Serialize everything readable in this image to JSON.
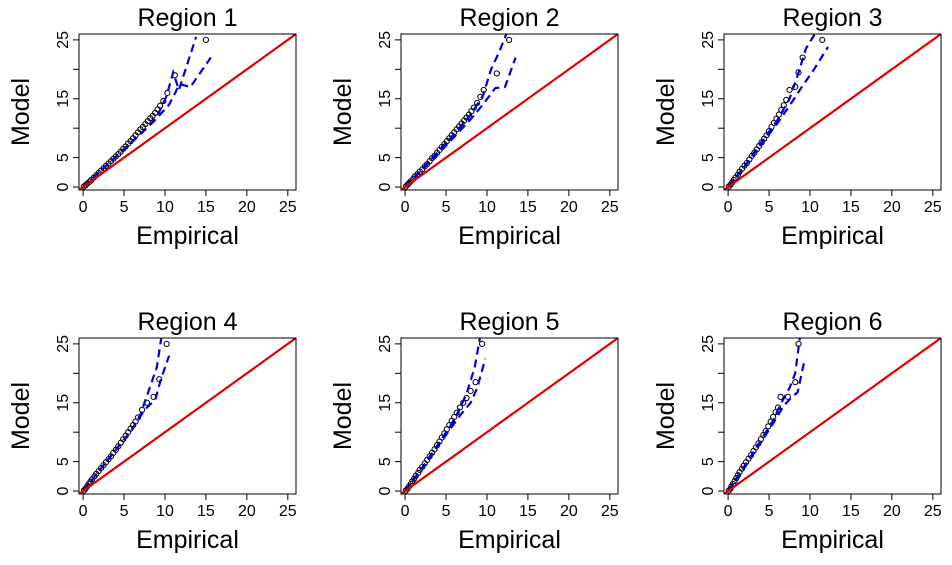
{
  "chart_data": [
    {
      "type": "scatter",
      "title": "Region  1",
      "xlabel": "Empirical",
      "ylabel": "Model",
      "xlim": [
        -0.5,
        26
      ],
      "ylim": [
        -0.5,
        26
      ],
      "xticks": [
        0,
        5,
        10,
        15,
        20,
        25
      ],
      "yticks": [
        0,
        5,
        15,
        25
      ],
      "series": [
        {
          "type": "scatter",
          "color": "#000000",
          "x": [
            0.1,
            0.3,
            0.5,
            0.8,
            1.0,
            1.3,
            1.6,
            1.9,
            2.2,
            2.5,
            2.8,
            3.1,
            3.4,
            3.7,
            4.0,
            4.3,
            4.6,
            4.9,
            5.2,
            5.5,
            5.8,
            6.1,
            6.4,
            6.7,
            7.0,
            7.3,
            7.6,
            7.9,
            8.2,
            8.5,
            8.8,
            9.1,
            9.4,
            9.8,
            10.3,
            11.2,
            15.0
          ],
          "y": [
            0.1,
            0.3,
            0.6,
            0.9,
            1.2,
            1.6,
            2.0,
            2.4,
            2.8,
            3.2,
            3.6,
            4.0,
            4.4,
            4.8,
            5.2,
            5.6,
            6.0,
            6.5,
            6.9,
            7.4,
            7.8,
            8.3,
            8.8,
            9.3,
            9.8,
            10.2,
            10.7,
            11.2,
            11.7,
            12.1,
            12.6,
            13.2,
            13.8,
            14.6,
            16.0,
            19.0,
            25.0
          ]
        },
        {
          "type": "dashed-line",
          "color": "#0000dd",
          "x": [
            0,
            2,
            4,
            6,
            8,
            9,
            10.2,
            11.0,
            11.7,
            13.8
          ],
          "y": [
            0,
            2.6,
            5.1,
            7.7,
            10.3,
            11.9,
            15.5,
            19.5,
            16.5,
            25.5
          ]
        },
        {
          "type": "dashed-line",
          "color": "#0000dd",
          "x": [
            0,
            2,
            4,
            6,
            8,
            9,
            10.5,
            11.8,
            13.1,
            15.6
          ],
          "y": [
            0,
            2.6,
            5.1,
            7.7,
            10.3,
            11.7,
            14.0,
            17.5,
            17.0,
            22.0
          ]
        },
        {
          "type": "line",
          "color": "#e00000",
          "x": [
            -0.5,
            26
          ],
          "y": [
            -0.5,
            26
          ]
        }
      ]
    },
    {
      "type": "scatter",
      "title": "Region  2",
      "xlabel": "Empirical",
      "ylabel": "Model",
      "xlim": [
        -0.5,
        26
      ],
      "ylim": [
        -0.5,
        26
      ],
      "xticks": [
        0,
        5,
        10,
        15,
        20,
        25
      ],
      "yticks": [
        0,
        5,
        15,
        25
      ],
      "series": [
        {
          "type": "scatter",
          "color": "#000000",
          "x": [
            0.1,
            0.3,
            0.5,
            0.7,
            1.0,
            1.2,
            1.5,
            1.8,
            2.1,
            2.4,
            2.7,
            3.0,
            3.3,
            3.6,
            3.9,
            4.2,
            4.5,
            4.8,
            5.1,
            5.4,
            5.7,
            6.0,
            6.3,
            6.6,
            6.9,
            7.2,
            7.5,
            7.8,
            8.1,
            8.4,
            8.8,
            9.2,
            9.6,
            11.2,
            12.7
          ],
          "y": [
            0.1,
            0.4,
            0.7,
            1.0,
            1.4,
            1.8,
            2.2,
            2.6,
            3.0,
            3.5,
            3.9,
            4.4,
            4.9,
            5.3,
            5.8,
            6.3,
            6.8,
            7.3,
            7.8,
            8.3,
            8.8,
            9.3,
            9.8,
            10.3,
            10.8,
            11.3,
            11.8,
            12.3,
            12.9,
            13.5,
            14.3,
            15.3,
            16.5,
            19.3,
            25.0
          ]
        },
        {
          "type": "dashed-line",
          "color": "#0000dd",
          "x": [
            0,
            2,
            4,
            6,
            8,
            9.5,
            10.5,
            11.5,
            12.5
          ],
          "y": [
            0,
            3.0,
            6.0,
            9.0,
            12.3,
            15.5,
            20.0,
            23.0,
            26.5
          ]
        },
        {
          "type": "dashed-line",
          "color": "#0000dd",
          "x": [
            0,
            2,
            4,
            6,
            8,
            9.5,
            11.0,
            12.2,
            13.5
          ],
          "y": [
            0,
            2.8,
            5.6,
            8.5,
            11.5,
            14.0,
            16.8,
            17.0,
            22.0
          ]
        },
        {
          "type": "line",
          "color": "#e00000",
          "x": [
            -0.5,
            26
          ],
          "y": [
            -0.5,
            26
          ]
        }
      ]
    },
    {
      "type": "scatter",
      "title": "Region  3",
      "xlabel": "Empirical",
      "ylabel": "Model",
      "xlim": [
        -0.5,
        26
      ],
      "ylim": [
        -0.5,
        26
      ],
      "xticks": [
        0,
        5,
        10,
        15,
        20,
        25
      ],
      "yticks": [
        0,
        5,
        15,
        25
      ],
      "series": [
        {
          "type": "scatter",
          "color": "#000000",
          "x": [
            0.1,
            0.3,
            0.5,
            0.7,
            0.9,
            1.2,
            1.4,
            1.7,
            2.0,
            2.3,
            2.6,
            2.9,
            3.2,
            3.5,
            3.8,
            4.1,
            4.4,
            4.7,
            5.0,
            5.3,
            5.6,
            5.9,
            6.2,
            6.5,
            6.8,
            7.1,
            7.5,
            8.2,
            8.6,
            9.1,
            11.5
          ],
          "y": [
            0.1,
            0.4,
            0.8,
            1.2,
            1.6,
            2.1,
            2.6,
            3.1,
            3.6,
            4.1,
            4.7,
            5.3,
            5.8,
            6.4,
            7.0,
            7.6,
            8.2,
            8.8,
            9.5,
            10.2,
            10.9,
            11.6,
            12.3,
            13.1,
            13.9,
            14.8,
            16.5,
            17.0,
            19.5,
            22.0,
            25.0
          ]
        },
        {
          "type": "dashed-line",
          "color": "#0000dd",
          "x": [
            0,
            2,
            4,
            6,
            7.5,
            8.5,
            9.5,
            10.8
          ],
          "y": [
            0,
            3.5,
            7.5,
            11.3,
            15.0,
            19.0,
            23.5,
            26.5
          ]
        },
        {
          "type": "dashed-line",
          "color": "#0000dd",
          "x": [
            0,
            2,
            4,
            6,
            7.5,
            9.0,
            10.5,
            12.2
          ],
          "y": [
            0,
            3.4,
            7.2,
            10.8,
            13.8,
            17.0,
            20.0,
            23.8
          ]
        },
        {
          "type": "line",
          "color": "#e00000",
          "x": [
            -0.5,
            26
          ],
          "y": [
            -0.5,
            26
          ]
        }
      ]
    },
    {
      "type": "scatter",
      "title": "Region  4",
      "xlabel": "Empirical",
      "ylabel": "Model",
      "xlim": [
        -0.5,
        26
      ],
      "ylim": [
        -0.5,
        26
      ],
      "xticks": [
        0,
        5,
        10,
        15,
        20,
        25
      ],
      "yticks": [
        0,
        5,
        15,
        25
      ],
      "series": [
        {
          "type": "scatter",
          "color": "#000000",
          "x": [
            0.1,
            0.3,
            0.5,
            0.7,
            0.9,
            1.1,
            1.4,
            1.6,
            1.9,
            2.2,
            2.5,
            2.8,
            3.1,
            3.4,
            3.7,
            4.0,
            4.3,
            4.6,
            4.9,
            5.2,
            5.5,
            5.8,
            6.1,
            6.4,
            6.7,
            7.2,
            7.8,
            8.6,
            9.3,
            10.2
          ],
          "y": [
            0.1,
            0.4,
            0.8,
            1.2,
            1.6,
            2.0,
            2.5,
            2.9,
            3.4,
            3.9,
            4.4,
            4.9,
            5.4,
            5.9,
            6.5,
            7.0,
            7.6,
            8.2,
            8.8,
            9.4,
            10.0,
            10.6,
            11.2,
            11.8,
            12.5,
            13.8,
            15.0,
            16.0,
            19.0,
            25.0
          ]
        },
        {
          "type": "dashed-line",
          "color": "#0000dd",
          "x": [
            0,
            2,
            4,
            6,
            7.0,
            8.0,
            9.0,
            9.6
          ],
          "y": [
            0,
            3.5,
            7.0,
            10.5,
            13.0,
            17.0,
            21.0,
            26.5
          ]
        },
        {
          "type": "dashed-line",
          "color": "#0000dd",
          "x": [
            0,
            2,
            4,
            6,
            7.5,
            8.8,
            9.5,
            10.5
          ],
          "y": [
            0,
            3.5,
            7.0,
            10.5,
            13.8,
            15.5,
            19.0,
            23.0
          ]
        },
        {
          "type": "line",
          "color": "#e00000",
          "x": [
            -0.5,
            26
          ],
          "y": [
            -0.5,
            26
          ]
        }
      ]
    },
    {
      "type": "scatter",
      "title": "Region  5",
      "xlabel": "Empirical",
      "ylabel": "Model",
      "xlim": [
        -0.5,
        26
      ],
      "ylim": [
        -0.5,
        26
      ],
      "xticks": [
        0,
        5,
        10,
        15,
        20,
        25
      ],
      "yticks": [
        0,
        5,
        15,
        25
      ],
      "series": [
        {
          "type": "scatter",
          "color": "#000000",
          "x": [
            0.1,
            0.3,
            0.5,
            0.7,
            0.9,
            1.1,
            1.3,
            1.6,
            1.8,
            2.1,
            2.4,
            2.7,
            3.0,
            3.3,
            3.6,
            3.9,
            4.2,
            4.5,
            4.8,
            5.1,
            5.4,
            5.7,
            6.0,
            6.3,
            6.7,
            7.1,
            7.5,
            8.0,
            8.6,
            9.4
          ],
          "y": [
            0.1,
            0.4,
            0.8,
            1.2,
            1.7,
            2.1,
            2.6,
            3.1,
            3.6,
            4.1,
            4.7,
            5.3,
            5.9,
            6.5,
            7.1,
            7.8,
            8.4,
            9.1,
            9.8,
            10.5,
            11.2,
            11.9,
            12.6,
            13.3,
            14.2,
            15.0,
            15.8,
            17.0,
            18.5,
            25.0
          ]
        },
        {
          "type": "dashed-line",
          "color": "#0000dd",
          "x": [
            0,
            2,
            4,
            5.5,
            6.5,
            7.5,
            8.5,
            9.2
          ],
          "y": [
            0,
            3.8,
            7.9,
            11.0,
            13.5,
            16.5,
            21.0,
            26.5
          ]
        },
        {
          "type": "dashed-line",
          "color": "#0000dd",
          "x": [
            0,
            2,
            4,
            5.5,
            6.8,
            8.0,
            8.8,
            9.8
          ],
          "y": [
            0,
            3.7,
            7.6,
            10.5,
            13.0,
            15.0,
            17.5,
            22.5
          ]
        },
        {
          "type": "line",
          "color": "#e00000",
          "x": [
            -0.5,
            26
          ],
          "y": [
            -0.5,
            26
          ]
        }
      ]
    },
    {
      "type": "scatter",
      "title": "Region  6",
      "xlabel": "Empirical",
      "ylabel": "Model",
      "xlim": [
        -0.5,
        26
      ],
      "ylim": [
        -0.5,
        26
      ],
      "xticks": [
        0,
        5,
        10,
        15,
        20,
        25
      ],
      "yticks": [
        0,
        5,
        15,
        25
      ],
      "series": [
        {
          "type": "scatter",
          "color": "#000000",
          "x": [
            0.1,
            0.3,
            0.4,
            0.6,
            0.8,
            1.0,
            1.2,
            1.4,
            1.7,
            1.9,
            2.2,
            2.5,
            2.8,
            3.1,
            3.4,
            3.7,
            4.0,
            4.3,
            4.6,
            4.9,
            5.2,
            5.5,
            5.8,
            6.1,
            6.4,
            7.3,
            8.2,
            8.6
          ],
          "y": [
            0.1,
            0.4,
            0.8,
            1.2,
            1.7,
            2.2,
            2.7,
            3.2,
            3.8,
            4.3,
            4.9,
            5.5,
            6.1,
            6.8,
            7.4,
            8.1,
            8.8,
            9.5,
            10.2,
            11.0,
            11.8,
            12.6,
            13.4,
            14.2,
            16.0,
            16.0,
            18.5,
            25.0
          ]
        },
        {
          "type": "dashed-line",
          "color": "#0000dd",
          "x": [
            0,
            2,
            4,
            5.5,
            6.5,
            7.5,
            8.2,
            8.8
          ],
          "y": [
            0,
            4.2,
            8.6,
            12.0,
            15.0,
            17.5,
            20.0,
            26.5
          ]
        },
        {
          "type": "dashed-line",
          "color": "#0000dd",
          "x": [
            0,
            2,
            4,
            5.5,
            6.8,
            7.8,
            8.5,
            9.3
          ],
          "y": [
            0,
            4.0,
            8.2,
            11.5,
            14.5,
            16.0,
            16.8,
            22.0
          ]
        },
        {
          "type": "line",
          "color": "#e00000",
          "x": [
            -0.5,
            26
          ],
          "y": [
            -0.5,
            26
          ]
        }
      ]
    }
  ]
}
